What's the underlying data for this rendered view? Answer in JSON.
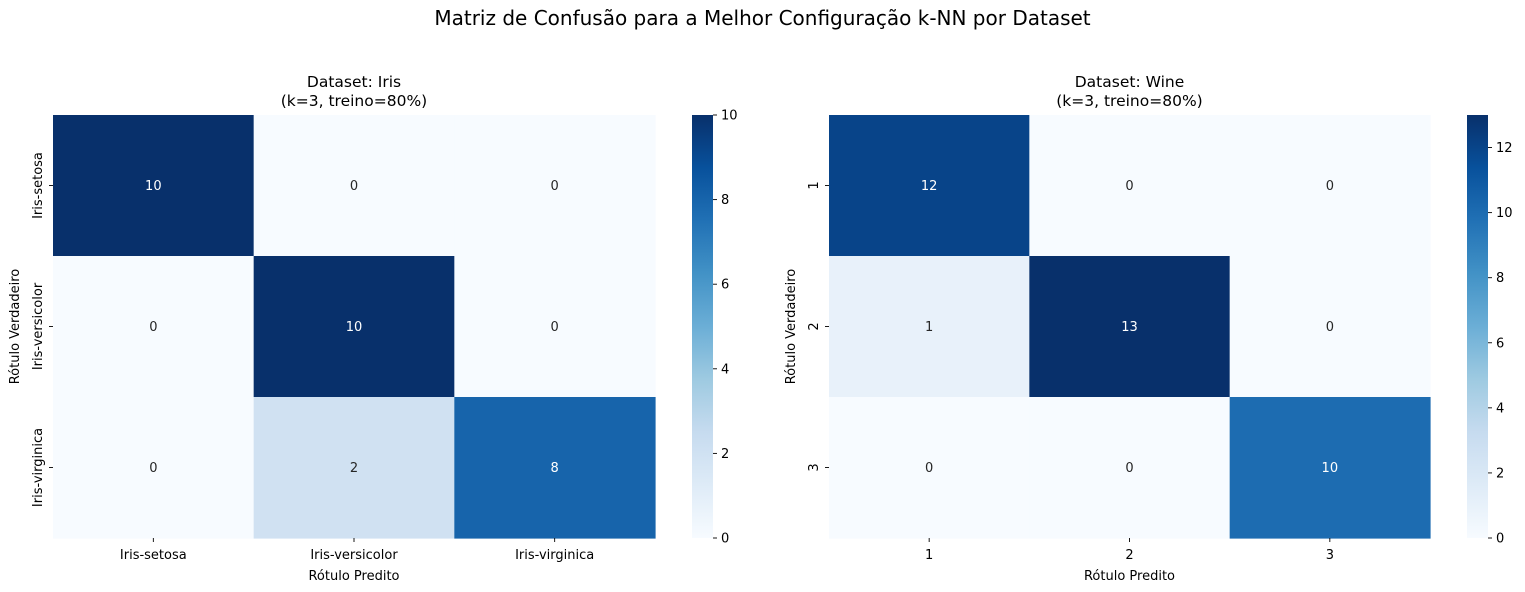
{
  "figure": {
    "suptitle": "Matriz de Confusão para a Melhor Configuração k-NN por Dataset"
  },
  "colormap": {
    "name": "Blues",
    "low": "#f7fbff",
    "high": "#08306b",
    "stops": [
      "#f7fbff",
      "#deebf7",
      "#c6dbef",
      "#9ecae1",
      "#6baed6",
      "#4292c6",
      "#2171b5",
      "#08519c",
      "#08306b"
    ]
  },
  "chart_data": [
    {
      "type": "heatmap",
      "title_line1": "Dataset: Iris",
      "title_line2": "(k=3, treino=80%)",
      "xlabel": "Rótulo Predito",
      "ylabel": "Rótulo Verdadeiro",
      "x_categories": [
        "Iris-setosa",
        "Iris-versicolor",
        "Iris-virginica"
      ],
      "y_categories": [
        "Iris-setosa",
        "Iris-versicolor",
        "Iris-virginica"
      ],
      "values": [
        [
          10,
          0,
          0
        ],
        [
          0,
          10,
          0
        ],
        [
          0,
          2,
          8
        ]
      ],
      "vmin": 0,
      "vmax": 10,
      "colorbar_ticks": [
        0,
        2,
        4,
        6,
        8,
        10
      ],
      "annotations": true
    },
    {
      "type": "heatmap",
      "title_line1": "Dataset: Wine",
      "title_line2": "(k=3, treino=80%)",
      "xlabel": "Rótulo Predito",
      "ylabel": "Rótulo Verdadeiro",
      "x_categories": [
        "1",
        "2",
        "3"
      ],
      "y_categories": [
        "1",
        "2",
        "3"
      ],
      "values": [
        [
          12,
          0,
          0
        ],
        [
          1,
          13,
          0
        ],
        [
          0,
          0,
          10
        ]
      ],
      "vmin": 0,
      "vmax": 13,
      "colorbar_ticks": [
        0,
        2,
        4,
        6,
        8,
        10,
        12
      ],
      "annotations": true
    }
  ]
}
